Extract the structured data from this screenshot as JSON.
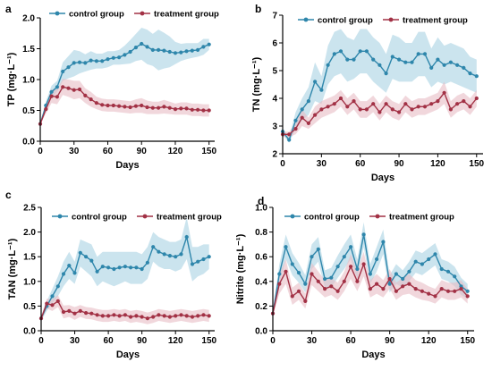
{
  "colors": {
    "control": "#2e86ab",
    "treatment": "#a23145",
    "control_band": "#a9d2e2",
    "treatment_band": "#e7bcc4",
    "axis": "#000000"
  },
  "legend_marker_icon": "circle-marker",
  "chart_data": [
    {
      "panel_letter": "a",
      "type": "line",
      "ylabel": "TP (mg·L⁻¹)",
      "xlabel": "Days",
      "xlim": [
        0,
        155
      ],
      "ylim": [
        0,
        2.0
      ],
      "xticks": [
        0,
        30,
        60,
        90,
        120,
        150
      ],
      "yticks": [
        "0.0",
        "0.5",
        "1.0",
        "1.5",
        "2.0"
      ],
      "ytick_values": [
        0,
        0.5,
        1.0,
        1.5,
        2.0
      ],
      "xtick_labels": [
        "0",
        "30",
        "60",
        "90",
        "120",
        "150"
      ],
      "legend": [
        "control group",
        "treatment group"
      ],
      "legend_placement": "top",
      "x": [
        0,
        5,
        10,
        15,
        20,
        25,
        30,
        35,
        40,
        45,
        50,
        55,
        60,
        65,
        70,
        75,
        80,
        85,
        90,
        95,
        100,
        105,
        110,
        115,
        120,
        125,
        130,
        135,
        140,
        145,
        150
      ],
      "series": [
        {
          "name": "control group",
          "values": [
            0.28,
            0.58,
            0.8,
            0.88,
            1.13,
            1.2,
            1.27,
            1.28,
            1.27,
            1.31,
            1.3,
            1.3,
            1.33,
            1.35,
            1.36,
            1.4,
            1.45,
            1.52,
            1.58,
            1.53,
            1.48,
            1.48,
            1.47,
            1.45,
            1.43,
            1.44,
            1.46,
            1.47,
            1.48,
            1.53,
            1.57
          ],
          "lower": [
            0.28,
            0.52,
            0.7,
            0.8,
            0.98,
            1.02,
            1.05,
            1.1,
            1.13,
            1.16,
            1.18,
            1.18,
            1.2,
            1.24,
            1.24,
            1.25,
            1.26,
            1.3,
            1.32,
            1.25,
            1.22,
            1.15,
            1.18,
            1.2,
            1.25,
            1.3,
            1.33,
            1.35,
            1.37,
            1.4,
            1.48
          ],
          "upper": [
            0.28,
            0.64,
            0.9,
            0.98,
            1.28,
            1.38,
            1.48,
            1.46,
            1.41,
            1.46,
            1.42,
            1.42,
            1.46,
            1.46,
            1.48,
            1.55,
            1.64,
            1.74,
            1.84,
            1.81,
            1.74,
            1.81,
            1.76,
            1.7,
            1.61,
            1.58,
            1.59,
            1.59,
            1.59,
            1.66,
            1.66
          ]
        },
        {
          "name": "treatment group",
          "values": [
            0.28,
            0.52,
            0.73,
            0.72,
            0.88,
            0.86,
            0.83,
            0.84,
            0.74,
            0.68,
            0.62,
            0.59,
            0.58,
            0.58,
            0.57,
            0.56,
            0.55,
            0.57,
            0.58,
            0.55,
            0.54,
            0.54,
            0.56,
            0.54,
            0.52,
            0.53,
            0.53,
            0.51,
            0.51,
            0.5,
            0.5
          ],
          "lower": [
            0.28,
            0.45,
            0.62,
            0.6,
            0.75,
            0.72,
            0.68,
            0.7,
            0.62,
            0.56,
            0.52,
            0.49,
            0.48,
            0.48,
            0.47,
            0.46,
            0.45,
            0.46,
            0.46,
            0.44,
            0.44,
            0.44,
            0.45,
            0.44,
            0.43,
            0.43,
            0.43,
            0.41,
            0.41,
            0.4,
            0.4
          ],
          "upper": [
            0.28,
            0.59,
            0.84,
            0.84,
            1.01,
            1.0,
            0.98,
            0.98,
            0.86,
            0.8,
            0.72,
            0.69,
            0.68,
            0.68,
            0.67,
            0.66,
            0.65,
            0.68,
            0.7,
            0.66,
            0.64,
            0.64,
            0.67,
            0.64,
            0.61,
            0.63,
            0.63,
            0.61,
            0.61,
            0.6,
            0.6
          ]
        }
      ]
    },
    {
      "panel_letter": "b",
      "type": "line",
      "ylabel": "TN (mg·L⁻¹)",
      "xlabel": "Days",
      "xlim": [
        0,
        155
      ],
      "ylim": [
        2,
        7
      ],
      "xticks": [
        0,
        30,
        60,
        90,
        120,
        150
      ],
      "yticks": [
        "2",
        "3",
        "4",
        "5",
        "6",
        "7"
      ],
      "ytick_values": [
        2,
        3,
        4,
        5,
        6,
        7
      ],
      "xtick_labels": [
        "0",
        "30",
        "60",
        "90",
        "120",
        "150"
      ],
      "legend": [
        "control group",
        "treatment group"
      ],
      "legend_placement": "top",
      "x": [
        0,
        5,
        10,
        15,
        20,
        25,
        30,
        35,
        40,
        45,
        50,
        55,
        60,
        65,
        70,
        75,
        80,
        85,
        90,
        95,
        100,
        105,
        110,
        115,
        120,
        125,
        130,
        135,
        140,
        145,
        150
      ],
      "series": [
        {
          "name": "control group",
          "values": [
            2.8,
            2.5,
            3.2,
            3.6,
            3.9,
            4.6,
            4.3,
            5.2,
            5.6,
            5.7,
            5.4,
            5.4,
            5.7,
            5.7,
            5.4,
            5.2,
            4.9,
            5.5,
            5.4,
            5.3,
            5.3,
            5.6,
            5.6,
            5.1,
            5.4,
            5.2,
            5.3,
            5.2,
            5.1,
            4.9,
            4.8
          ],
          "lower": [
            2.7,
            2.4,
            2.9,
            3.2,
            3.4,
            3.9,
            3.8,
            4.5,
            4.8,
            4.9,
            4.6,
            4.7,
            4.9,
            4.9,
            4.6,
            4.4,
            4.2,
            4.7,
            4.6,
            4.6,
            4.6,
            4.8,
            4.8,
            4.4,
            4.6,
            4.5,
            4.6,
            4.5,
            4.4,
            4.3,
            4.2
          ],
          "upper": [
            2.9,
            2.6,
            3.5,
            4.0,
            4.4,
            5.3,
            4.8,
            5.9,
            6.4,
            6.5,
            6.2,
            6.1,
            6.5,
            6.5,
            6.2,
            6.0,
            5.6,
            6.3,
            6.2,
            6.0,
            6.0,
            6.4,
            6.4,
            5.8,
            6.2,
            5.9,
            6.0,
            5.9,
            5.8,
            5.5,
            5.4
          ]
        },
        {
          "name": "treatment group",
          "values": [
            2.7,
            2.7,
            2.9,
            3.3,
            3.1,
            3.4,
            3.6,
            3.7,
            3.8,
            4.0,
            3.7,
            3.9,
            3.6,
            3.6,
            3.8,
            3.5,
            3.8,
            3.6,
            3.5,
            3.8,
            3.6,
            3.7,
            3.7,
            3.8,
            3.9,
            4.2,
            3.6,
            3.8,
            3.9,
            3.7,
            4.0
          ],
          "lower": [
            2.6,
            2.6,
            2.7,
            3.0,
            2.9,
            3.1,
            3.3,
            3.4,
            3.5,
            3.7,
            3.4,
            3.6,
            3.3,
            3.3,
            3.5,
            3.2,
            3.5,
            3.3,
            3.2,
            3.5,
            3.3,
            3.4,
            3.4,
            3.5,
            3.6,
            3.8,
            3.3,
            3.5,
            3.6,
            3.4,
            3.7
          ],
          "upper": [
            2.8,
            2.8,
            3.1,
            3.6,
            3.3,
            3.7,
            3.9,
            4.0,
            4.1,
            4.3,
            4.0,
            4.2,
            3.9,
            3.9,
            4.1,
            3.8,
            4.1,
            3.9,
            3.8,
            4.1,
            3.9,
            4.0,
            4.0,
            4.1,
            4.2,
            4.6,
            3.9,
            4.1,
            4.2,
            4.0,
            4.3
          ]
        }
      ]
    },
    {
      "panel_letter": "c",
      "type": "line",
      "ylabel": "TAN (mg·L⁻¹)",
      "xlabel": "Days",
      "xlim": [
        0,
        155
      ],
      "ylim": [
        0,
        2.5
      ],
      "xticks": [
        0,
        30,
        60,
        90,
        120,
        150
      ],
      "yticks": [
        "0.0",
        "0.5",
        "1.0",
        "1.5",
        "2.0",
        "2.5"
      ],
      "ytick_values": [
        0,
        0.5,
        1.0,
        1.5,
        2.0,
        2.5
      ],
      "xtick_labels": [
        "0",
        "30",
        "60",
        "90",
        "120",
        "150"
      ],
      "legend": [
        "control group",
        "treatment group"
      ],
      "legend_placement": "top",
      "x": [
        0,
        5,
        10,
        15,
        20,
        25,
        30,
        35,
        40,
        45,
        50,
        55,
        60,
        65,
        70,
        75,
        80,
        85,
        90,
        95,
        100,
        105,
        110,
        115,
        120,
        125,
        130,
        135,
        140,
        145,
        150
      ],
      "series": [
        {
          "name": "control group",
          "values": [
            0.25,
            0.5,
            0.7,
            0.9,
            1.15,
            1.32,
            1.17,
            1.58,
            1.5,
            1.42,
            1.2,
            1.3,
            1.28,
            1.25,
            1.28,
            1.3,
            1.28,
            1.28,
            1.25,
            1.38,
            1.7,
            1.6,
            1.55,
            1.52,
            1.5,
            1.55,
            1.9,
            1.35,
            1.4,
            1.45,
            1.5
          ],
          "lower": [
            0.2,
            0.4,
            0.55,
            0.7,
            0.9,
            1.05,
            0.95,
            1.3,
            1.2,
            1.1,
            0.9,
            1.0,
            0.95,
            0.9,
            0.95,
            1.0,
            0.95,
            0.95,
            0.95,
            1.05,
            1.4,
            1.3,
            1.25,
            1.25,
            1.2,
            1.25,
            1.45,
            1.0,
            1.1,
            1.15,
            1.25
          ],
          "upper": [
            0.3,
            0.6,
            0.85,
            1.1,
            1.4,
            1.6,
            1.4,
            1.85,
            1.8,
            1.75,
            1.5,
            1.6,
            1.6,
            1.6,
            1.6,
            1.6,
            1.6,
            1.6,
            1.55,
            1.7,
            2.0,
            1.9,
            1.85,
            1.8,
            1.8,
            1.85,
            2.3,
            1.7,
            1.7,
            1.75,
            1.75
          ]
        },
        {
          "name": "treatment group",
          "values": [
            0.25,
            0.55,
            0.52,
            0.6,
            0.38,
            0.4,
            0.35,
            0.4,
            0.36,
            0.35,
            0.32,
            0.3,
            0.3,
            0.32,
            0.3,
            0.32,
            0.28,
            0.3,
            0.28,
            0.25,
            0.28,
            0.32,
            0.3,
            0.28,
            0.3,
            0.32,
            0.3,
            0.28,
            0.3,
            0.32,
            0.3
          ],
          "lower": [
            0.2,
            0.45,
            0.4,
            0.48,
            0.25,
            0.28,
            0.22,
            0.28,
            0.24,
            0.23,
            0.2,
            0.18,
            0.18,
            0.2,
            0.18,
            0.2,
            0.16,
            0.18,
            0.16,
            0.13,
            0.16,
            0.2,
            0.18,
            0.16,
            0.18,
            0.2,
            0.18,
            0.16,
            0.18,
            0.2,
            0.18
          ],
          "upper": [
            0.3,
            0.65,
            0.64,
            0.72,
            0.51,
            0.52,
            0.48,
            0.52,
            0.48,
            0.47,
            0.44,
            0.42,
            0.42,
            0.44,
            0.42,
            0.44,
            0.4,
            0.42,
            0.4,
            0.37,
            0.4,
            0.44,
            0.42,
            0.4,
            0.42,
            0.44,
            0.42,
            0.4,
            0.42,
            0.44,
            0.42
          ]
        }
      ]
    },
    {
      "panel_letter": "d",
      "type": "line",
      "ylabel": "Nitrite (mg·L⁻¹)",
      "xlabel": "Days",
      "xlim": [
        0,
        155
      ],
      "ylim": [
        0,
        1.0
      ],
      "xticks": [
        0,
        30,
        60,
        90,
        120,
        150
      ],
      "yticks": [
        "0.0",
        "0.2",
        "0.4",
        "0.6",
        "0.8",
        "1.0"
      ],
      "ytick_values": [
        0,
        0.2,
        0.4,
        0.6,
        0.8,
        1.0
      ],
      "xtick_labels": [
        "0",
        "30",
        "60",
        "90",
        "120",
        "150"
      ],
      "legend": [
        "control group",
        "treatment group"
      ],
      "legend_placement": "top",
      "x": [
        0,
        5,
        10,
        15,
        20,
        25,
        30,
        35,
        40,
        45,
        50,
        55,
        60,
        65,
        70,
        75,
        80,
        85,
        90,
        95,
        100,
        105,
        110,
        115,
        120,
        125,
        130,
        135,
        140,
        145,
        150
      ],
      "series": [
        {
          "name": "control group",
          "values": [
            0.14,
            0.46,
            0.68,
            0.54,
            0.47,
            0.38,
            0.6,
            0.66,
            0.42,
            0.43,
            0.52,
            0.6,
            0.68,
            0.5,
            0.78,
            0.46,
            0.58,
            0.72,
            0.38,
            0.46,
            0.42,
            0.48,
            0.56,
            0.54,
            0.58,
            0.62,
            0.5,
            0.48,
            0.44,
            0.36,
            0.32
          ],
          "lower": [
            0.12,
            0.38,
            0.58,
            0.45,
            0.39,
            0.31,
            0.5,
            0.56,
            0.35,
            0.35,
            0.43,
            0.5,
            0.58,
            0.42,
            0.68,
            0.38,
            0.48,
            0.62,
            0.31,
            0.38,
            0.35,
            0.4,
            0.47,
            0.45,
            0.49,
            0.53,
            0.42,
            0.4,
            0.36,
            0.29,
            0.26
          ],
          "upper": [
            0.16,
            0.54,
            0.78,
            0.63,
            0.55,
            0.45,
            0.7,
            0.76,
            0.49,
            0.51,
            0.61,
            0.7,
            0.78,
            0.58,
            0.88,
            0.54,
            0.68,
            0.82,
            0.45,
            0.54,
            0.49,
            0.56,
            0.65,
            0.63,
            0.67,
            0.71,
            0.58,
            0.56,
            0.52,
            0.43,
            0.38
          ]
        },
        {
          "name": "treatment group",
          "values": [
            0.14,
            0.38,
            0.48,
            0.28,
            0.32,
            0.24,
            0.46,
            0.4,
            0.34,
            0.36,
            0.32,
            0.4,
            0.52,
            0.4,
            0.54,
            0.34,
            0.38,
            0.34,
            0.42,
            0.32,
            0.36,
            0.38,
            0.34,
            0.32,
            0.3,
            0.28,
            0.34,
            0.32,
            0.32,
            0.34,
            0.28
          ],
          "lower": [
            0.12,
            0.3,
            0.38,
            0.21,
            0.25,
            0.18,
            0.37,
            0.32,
            0.27,
            0.29,
            0.25,
            0.32,
            0.42,
            0.32,
            0.44,
            0.27,
            0.3,
            0.27,
            0.34,
            0.25,
            0.29,
            0.3,
            0.27,
            0.25,
            0.24,
            0.22,
            0.27,
            0.25,
            0.25,
            0.27,
            0.22
          ],
          "upper": [
            0.16,
            0.46,
            0.58,
            0.35,
            0.39,
            0.3,
            0.55,
            0.48,
            0.41,
            0.43,
            0.39,
            0.48,
            0.62,
            0.48,
            0.64,
            0.41,
            0.46,
            0.41,
            0.5,
            0.39,
            0.43,
            0.46,
            0.41,
            0.39,
            0.36,
            0.34,
            0.41,
            0.39,
            0.39,
            0.41,
            0.34
          ]
        }
      ]
    }
  ]
}
